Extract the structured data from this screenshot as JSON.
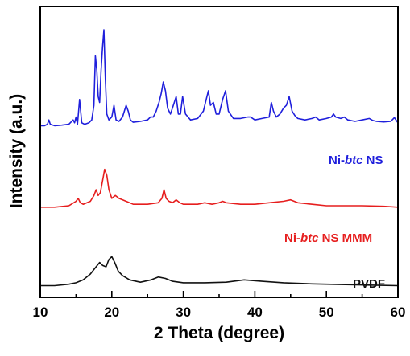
{
  "chart_data": {
    "type": "line",
    "title": "",
    "xlabel": "2 Theta (degree)",
    "ylabel": "Intensity (a.u.)",
    "xlim": [
      10,
      60
    ],
    "xticks": [
      10,
      20,
      30,
      40,
      50,
      60
    ],
    "ylim": [
      0,
      100
    ],
    "y_tick_labels_shown": false,
    "grid": false,
    "legend": "inline labels right of each trace",
    "series": [
      {
        "name": "Ni-btc NS",
        "label_parts": [
          "Ni-",
          "btc",
          " NS"
        ],
        "color": "#1f1fdc",
        "x": [
          10,
          10.6,
          11.0,
          11.2,
          11.4,
          12.0,
          13.0,
          14.0,
          14.6,
          14.8,
          15.0,
          15.2,
          15.5,
          15.8,
          16.2,
          16.8,
          17.2,
          17.5,
          17.7,
          17.9,
          18.1,
          18.3,
          18.5,
          18.7,
          18.9,
          19.1,
          19.3,
          19.6,
          20.0,
          20.3,
          20.6,
          21.0,
          21.5,
          22.0,
          22.3,
          22.6,
          23.0,
          24.0,
          25.0,
          25.4,
          25.8,
          26.2,
          26.6,
          26.9,
          27.2,
          27.5,
          27.8,
          28.2,
          28.6,
          29.0,
          29.3,
          29.6,
          29.9,
          30.3,
          31.0,
          32.0,
          32.8,
          33.2,
          33.5,
          33.8,
          34.2,
          34.6,
          35.0,
          35.5,
          35.9,
          36.3,
          37.0,
          38.0,
          39.0,
          39.4,
          40.0,
          41.0,
          42.0,
          42.3,
          42.6,
          43.0,
          43.5,
          44.0,
          44.4,
          44.8,
          45.2,
          45.6,
          46.0,
          47.0,
          48.0,
          48.5,
          49.0,
          50.0,
          50.7,
          51.0,
          51.3,
          52.0,
          52.5,
          53.0,
          54.0,
          55.0,
          56.0,
          56.5,
          57.0,
          58.0,
          59.0,
          59.5,
          60.0
        ],
        "y": [
          59,
          59,
          59.5,
          61,
          59.5,
          59,
          59.2,
          59.5,
          61,
          60,
          62,
          59.5,
          68,
          60,
          59.5,
          60,
          61,
          66,
          83,
          78,
          69,
          67,
          78,
          86,
          92,
          75,
          63,
          61,
          62,
          66,
          61,
          60.5,
          62,
          66,
          64,
          61,
          60.2,
          60.5,
          61,
          62,
          62,
          64,
          67,
          70,
          74,
          71,
          65,
          63,
          66,
          69,
          63,
          63,
          69,
          63,
          61,
          61.5,
          64,
          68,
          71,
          66,
          67,
          63,
          63,
          68,
          71,
          64,
          61.5,
          61.5,
          62,
          62,
          61,
          61.5,
          62,
          67,
          64,
          62,
          63,
          65,
          66,
          69,
          64,
          62.5,
          61.5,
          61,
          61.5,
          62,
          61,
          61.5,
          62,
          63,
          62,
          61.5,
          62,
          61,
          60.5,
          61,
          61.5,
          60.8,
          60.5,
          60.3,
          60.5,
          61.8,
          60
        ]
      },
      {
        "name": "Ni-btc NS MMM",
        "label_parts": [
          "Ni-",
          "btc",
          " NS MMM"
        ],
        "color": "#e61e1e",
        "x": [
          10,
          12.0,
          14.0,
          15.0,
          15.3,
          15.6,
          16.0,
          17.0,
          17.5,
          17.8,
          18.1,
          18.4,
          18.7,
          19.0,
          19.3,
          19.6,
          20.0,
          20.5,
          21.0,
          22.0,
          23.0,
          25.0,
          26.5,
          27.0,
          27.3,
          27.6,
          28.0,
          28.5,
          29.0,
          29.5,
          30.0,
          32.0,
          33.0,
          34.0,
          35.0,
          35.5,
          36.0,
          38.0,
          40.0,
          42.0,
          44.0,
          45.0,
          46.0,
          48.0,
          50.0,
          52.0,
          55.0,
          58.0,
          60.0
        ],
        "y": [
          31,
          31,
          31.5,
          33,
          34,
          32.5,
          32,
          33,
          35,
          37,
          35,
          36,
          40,
          44,
          42,
          37,
          34,
          35,
          34,
          33,
          32,
          32,
          32.5,
          34,
          37,
          34,
          33,
          32.5,
          33.5,
          32.5,
          32,
          32,
          32.5,
          32,
          32.5,
          33,
          32.5,
          32,
          32,
          32.5,
          33,
          33.5,
          32.5,
          32,
          31.5,
          31.5,
          31.5,
          31.3,
          31
        ]
      },
      {
        "name": "PVDF",
        "label_parts": [
          "PVDF"
        ],
        "color": "#111111",
        "x": [
          10,
          12.0,
          14.0,
          15.0,
          16.0,
          17.0,
          17.8,
          18.3,
          18.7,
          19.2,
          19.6,
          20.0,
          20.4,
          20.9,
          21.5,
          22.5,
          24.0,
          25.5,
          26.5,
          27.5,
          28.5,
          30.0,
          33.0,
          36.0,
          38.5,
          41.0,
          44.0,
          48.0,
          52.0,
          56.0,
          60.0
        ],
        "y": [
          4,
          4,
          4.5,
          5,
          6,
          8,
          10.5,
          12,
          11,
          10.5,
          13,
          14,
          12,
          9,
          7.5,
          6,
          5.2,
          6,
          7,
          6.5,
          5.5,
          5,
          5,
          5.2,
          6,
          5.5,
          5,
          4.6,
          4.4,
          4.2,
          4
        ]
      }
    ]
  }
}
